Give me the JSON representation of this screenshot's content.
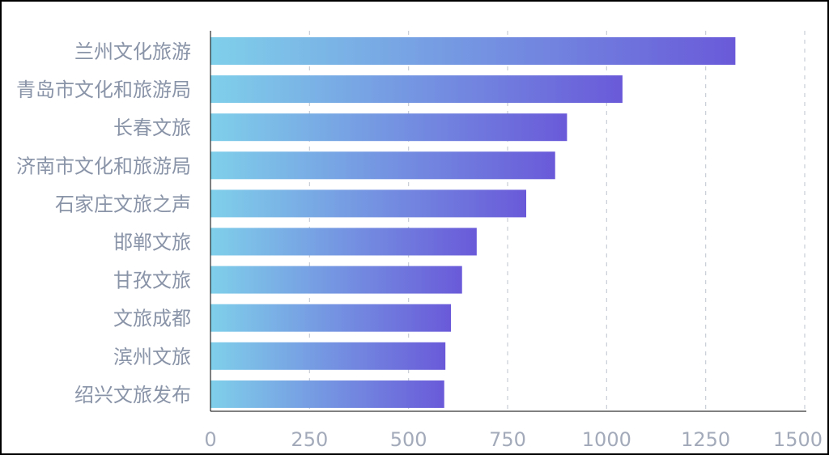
{
  "chart_data": {
    "type": "bar",
    "orientation": "horizontal",
    "title": "",
    "xlabel": "",
    "ylabel": "",
    "categories": [
      "兰州文化旅游",
      "青岛市文化和旅游局",
      "长春文旅",
      "济南市文化和旅游局",
      "石家庄文旅之声",
      "邯郸文旅",
      "甘孜文旅",
      "文旅成都",
      "滨州文旅",
      "绍兴文旅发布"
    ],
    "values": [
      1325,
      1040,
      900,
      870,
      797,
      672,
      635,
      607,
      593,
      590
    ],
    "xlim": [
      0,
      1500
    ],
    "x_ticks": [
      0,
      250,
      500,
      750,
      1000,
      1250,
      1500
    ],
    "x_tick_labels": [
      "0",
      "250",
      "500",
      "750",
      "1000",
      "1250",
      "1500"
    ],
    "grid": "vertical dashed",
    "legend": "none"
  },
  "colors": {
    "bar_gradient_start": "#7fcfea",
    "bar_gradient_end": "#6a5ad9",
    "axis_line": "#000000",
    "grid_line": "#c8cdd6",
    "label_text": "#8a94a8",
    "tick_text": "#a3abba",
    "frame_border": "#000000"
  }
}
